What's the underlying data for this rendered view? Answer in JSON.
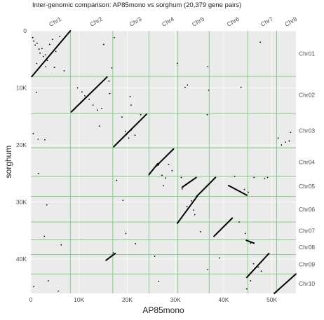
{
  "chart_data": {
    "type": "scatter",
    "title": "Inter-genomic comparison: AP85mono vs sorghum (20,379 gene pairs)",
    "xlabel": "AP85mono",
    "ylabel": "sorghum",
    "xlim": [
      0,
      55000
    ],
    "ylim": [
      0,
      46000
    ],
    "y_inverted": true,
    "grid": true,
    "x_ticks": [
      0,
      10000,
      20000,
      30000,
      40000,
      50000
    ],
    "x_tick_labels": [
      "0",
      "10K",
      "20K",
      "30K",
      "40K",
      "50K"
    ],
    "y_ticks": [
      0,
      10000,
      20000,
      30000,
      40000
    ],
    "y_tick_labels": [
      "0",
      "10K",
      "20K",
      "30K",
      "40K"
    ],
    "x_chromosomes": [
      {
        "name": "Chr1",
        "start": 0,
        "end": 8200
      },
      {
        "name": "Chr2",
        "start": 8200,
        "end": 17000
      },
      {
        "name": "Chr3",
        "start": 17000,
        "end": 24500
      },
      {
        "name": "Chr4",
        "start": 24500,
        "end": 30500
      },
      {
        "name": "Chr5",
        "start": 30500,
        "end": 37000
      },
      {
        "name": "Chr6",
        "start": 37000,
        "end": 45000
      },
      {
        "name": "Chr7",
        "start": 45000,
        "end": 51000
      },
      {
        "name": "Chr8",
        "start": 51000,
        "end": 55000
      }
    ],
    "y_chromosomes": [
      {
        "name": "Chr01",
        "start": 0,
        "end": 8000
      },
      {
        "name": "Chr02",
        "start": 8000,
        "end": 14500
      },
      {
        "name": "Chr03",
        "start": 14500,
        "end": 20500
      },
      {
        "name": "Chr04",
        "start": 20500,
        "end": 25500
      },
      {
        "name": "Chr05",
        "start": 25500,
        "end": 29000
      },
      {
        "name": "Chr06",
        "start": 29000,
        "end": 33500
      },
      {
        "name": "Chr07",
        "start": 33500,
        "end": 36600
      },
      {
        "name": "Chr08",
        "start": 36600,
        "end": 39200
      },
      {
        "name": "Chr09",
        "start": 39200,
        "end": 42600
      },
      {
        "name": "Chr10",
        "start": 42600,
        "end": 46000
      }
    ],
    "synteny_blocks": [
      {
        "x": [
          200,
          8200
        ],
        "y": [
          8000,
          0
        ]
      },
      {
        "x": [
          8400,
          15800
        ],
        "y": [
          14200,
          8100
        ]
      },
      {
        "x": [
          17200,
          24000
        ],
        "y": [
          20300,
          14600
        ]
      },
      {
        "x": [
          24500,
          26300
        ],
        "y": [
          25200,
          23300
        ]
      },
      {
        "x": [
          26000,
          29600
        ],
        "y": [
          23700,
          20700
        ]
      },
      {
        "x": [
          31400,
          34300
        ],
        "y": [
          27400,
          25700
        ]
      },
      {
        "x": [
          30400,
          34500
        ],
        "y": [
          33700,
          29000
        ]
      },
      {
        "x": [
          34400,
          38300
        ],
        "y": [
          29000,
          25700
        ]
      },
      {
        "x": [
          41000,
          44800
        ],
        "y": [
          27100,
          28800
        ]
      },
      {
        "x": [
          38000,
          41800
        ],
        "y": [
          36000,
          32800
        ]
      },
      {
        "x": [
          44700,
          46300
        ],
        "y": [
          36700,
          37200
        ]
      },
      {
        "x": [
          15600,
          17500
        ],
        "y": [
          40200,
          39000
        ]
      },
      {
        "x": [
          44800,
          49400
        ],
        "y": [
          43200,
          39000
        ]
      },
      {
        "x": [
          50500,
          55000
        ],
        "y": [
          46000,
          42600
        ]
      }
    ],
    "scattered_points": [
      [
        400,
        1200
      ],
      [
        600,
        1800
      ],
      [
        900,
        2500
      ],
      [
        1300,
        2200
      ],
      [
        1700,
        3200
      ],
      [
        1900,
        3900
      ],
      [
        2300,
        3100
      ],
      [
        2600,
        4500
      ],
      [
        3000,
        4200
      ],
      [
        3400,
        5200
      ],
      [
        3900,
        2400
      ],
      [
        4500,
        1500
      ],
      [
        5200,
        3600
      ],
      [
        4900,
        6400
      ],
      [
        6000,
        1000
      ],
      [
        1200,
        5700
      ],
      [
        3100,
        6300
      ],
      [
        6900,
        7000
      ],
      [
        1200,
        10800
      ],
      [
        500,
        18000
      ],
      [
        1500,
        19000
      ],
      [
        2900,
        19100
      ],
      [
        1600,
        25000
      ],
      [
        3300,
        30500
      ],
      [
        2800,
        36000
      ],
      [
        6300,
        37500
      ],
      [
        3600,
        43800
      ],
      [
        5700,
        45600
      ],
      [
        600,
        44800
      ],
      [
        9700,
        10000
      ],
      [
        10600,
        10700
      ],
      [
        11200,
        11400
      ],
      [
        12100,
        12000
      ],
      [
        13800,
        13900
      ],
      [
        14700,
        13600
      ],
      [
        16200,
        8800
      ],
      [
        16800,
        6500
      ],
      [
        16400,
        11000
      ],
      [
        15100,
        2400
      ],
      [
        12900,
        13000
      ],
      [
        14200,
        16700
      ],
      [
        17300,
        1200
      ],
      [
        19600,
        17600
      ],
      [
        20300,
        18800
      ],
      [
        20800,
        17400
      ],
      [
        21600,
        18300
      ],
      [
        22800,
        14700
      ],
      [
        18900,
        15100
      ],
      [
        20600,
        11500
      ],
      [
        20800,
        13000
      ],
      [
        17800,
        26200
      ],
      [
        19100,
        29700
      ],
      [
        19700,
        35500
      ],
      [
        21700,
        37300
      ],
      [
        17100,
        38900
      ],
      [
        19800,
        18200
      ],
      [
        26500,
        23500
      ],
      [
        27200,
        25300
      ],
      [
        28100,
        22000
      ],
      [
        28600,
        23400
      ],
      [
        29300,
        24500
      ],
      [
        27900,
        25800
      ],
      [
        25700,
        39500
      ],
      [
        26500,
        43900
      ],
      [
        27500,
        27100
      ],
      [
        30400,
        5700
      ],
      [
        32000,
        9900
      ],
      [
        32500,
        9500
      ],
      [
        31200,
        25700
      ],
      [
        31400,
        27700
      ],
      [
        32400,
        30800
      ],
      [
        33300,
        29800
      ],
      [
        33800,
        31400
      ],
      [
        34000,
        32200
      ],
      [
        35200,
        35200
      ],
      [
        36700,
        6300
      ],
      [
        36900,
        10400
      ],
      [
        36600,
        14700
      ],
      [
        36700,
        41800
      ],
      [
        38300,
        25700
      ],
      [
        39100,
        39800
      ],
      [
        43600,
        9900
      ],
      [
        42300,
        25500
      ],
      [
        42900,
        28000
      ],
      [
        43200,
        33500
      ],
      [
        44500,
        35500
      ],
      [
        44300,
        27800
      ],
      [
        45100,
        28300
      ],
      [
        45600,
        37200
      ],
      [
        46300,
        25700
      ],
      [
        46200,
        40800
      ],
      [
        47200,
        41400
      ],
      [
        47800,
        42100
      ],
      [
        44800,
        45200
      ],
      [
        45600,
        43800
      ],
      [
        47600,
        2000
      ],
      [
        48500,
        25900
      ],
      [
        49100,
        25700
      ],
      [
        51300,
        18800
      ],
      [
        52800,
        19500
      ],
      [
        53600,
        19300
      ],
      [
        52000,
        20000
      ],
      [
        53900,
        17800
      ]
    ]
  }
}
